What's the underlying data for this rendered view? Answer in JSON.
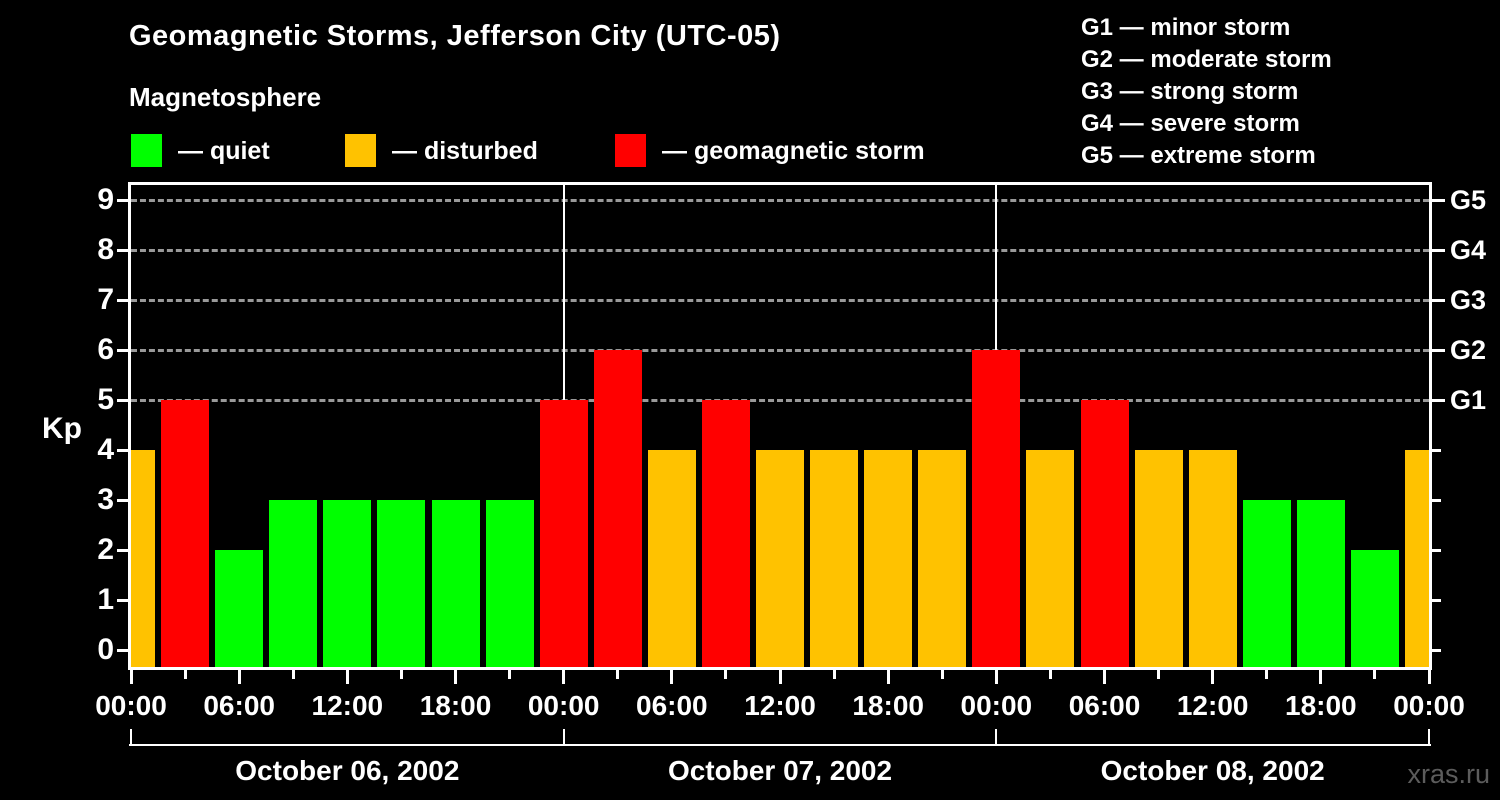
{
  "header": {
    "title": "Geomagnetic Storms, Jefferson City (UTC-05)",
    "subtitle": "Magnetosphere"
  },
  "legend": {
    "items": [
      {
        "name": "quiet",
        "label": "— quiet",
        "color": "#00ff00"
      },
      {
        "name": "disturbed",
        "label": "— disturbed",
        "color": "#ffc200"
      },
      {
        "name": "geomagnetic-storm",
        "label": "— geomagnetic storm",
        "color": "#ff0000"
      }
    ]
  },
  "g_scale_legend": {
    "lines": [
      "G1 — minor storm",
      "G2 — moderate storm",
      "G3 — strong storm",
      "G4 — severe storm",
      "G5 — extreme storm"
    ]
  },
  "watermark": "xras.ru",
  "colors": {
    "quiet": "#00ff00",
    "disturbed": "#ffc200",
    "storm": "#ff0000",
    "grid": "#999999",
    "axis": "#ffffff",
    "background": "#000000",
    "watermark": "#5c5c5c"
  },
  "chart_data": {
    "type": "bar",
    "title": "Geomagnetic Storms, Jefferson City (UTC-05)",
    "subtitle": "Magnetosphere",
    "ylabel": "Kp",
    "ylim": [
      0,
      9
    ],
    "y_ticks": [
      0,
      1,
      2,
      3,
      4,
      5,
      6,
      7,
      8,
      9
    ],
    "gridlines_at_kp": [
      5,
      6,
      7,
      8,
      9
    ],
    "right_axis_labels": [
      {
        "kp": 5,
        "label": "G1"
      },
      {
        "kp": 6,
        "label": "G2"
      },
      {
        "kp": 7,
        "label": "G3"
      },
      {
        "kp": 8,
        "label": "G4"
      },
      {
        "kp": 9,
        "label": "G5"
      }
    ],
    "x_time_labels": [
      "00:00",
      "06:00",
      "12:00",
      "18:00",
      "00:00",
      "06:00",
      "12:00",
      "18:00",
      "00:00",
      "06:00",
      "12:00",
      "18:00",
      "00:00"
    ],
    "day_labels": [
      "October 06, 2002",
      "October 07, 2002",
      "October 08, 2002"
    ],
    "day_boundary_slots": [
      0,
      8,
      16,
      24
    ],
    "hours_per_slot": 3,
    "points": [
      {
        "time": "Oct 06 00:00",
        "kp": 4,
        "status": "disturbed"
      },
      {
        "time": "Oct 06 03:00",
        "kp": 5,
        "status": "storm"
      },
      {
        "time": "Oct 06 06:00",
        "kp": 2,
        "status": "quiet"
      },
      {
        "time": "Oct 06 09:00",
        "kp": 3,
        "status": "quiet"
      },
      {
        "time": "Oct 06 12:00",
        "kp": 3,
        "status": "quiet"
      },
      {
        "time": "Oct 06 15:00",
        "kp": 3,
        "status": "quiet"
      },
      {
        "time": "Oct 06 18:00",
        "kp": 3,
        "status": "quiet"
      },
      {
        "time": "Oct 06 21:00",
        "kp": 3,
        "status": "quiet"
      },
      {
        "time": "Oct 07 00:00",
        "kp": 5,
        "status": "storm"
      },
      {
        "time": "Oct 07 03:00",
        "kp": 6,
        "status": "storm"
      },
      {
        "time": "Oct 07 06:00",
        "kp": 4,
        "status": "disturbed"
      },
      {
        "time": "Oct 07 09:00",
        "kp": 5,
        "status": "storm"
      },
      {
        "time": "Oct 07 12:00",
        "kp": 4,
        "status": "disturbed"
      },
      {
        "time": "Oct 07 15:00",
        "kp": 4,
        "status": "disturbed"
      },
      {
        "time": "Oct 07 18:00",
        "kp": 4,
        "status": "disturbed"
      },
      {
        "time": "Oct 07 21:00",
        "kp": 4,
        "status": "disturbed"
      },
      {
        "time": "Oct 08 00:00",
        "kp": 6,
        "status": "storm"
      },
      {
        "time": "Oct 08 03:00",
        "kp": 4,
        "status": "disturbed"
      },
      {
        "time": "Oct 08 06:00",
        "kp": 5,
        "status": "storm"
      },
      {
        "time": "Oct 08 09:00",
        "kp": 4,
        "status": "disturbed"
      },
      {
        "time": "Oct 08 12:00",
        "kp": 4,
        "status": "disturbed"
      },
      {
        "time": "Oct 08 15:00",
        "kp": 3,
        "status": "quiet"
      },
      {
        "time": "Oct 08 18:00",
        "kp": 3,
        "status": "quiet"
      },
      {
        "time": "Oct 08 21:00",
        "kp": 2,
        "status": "quiet"
      },
      {
        "time": "Oct 09 00:00",
        "kp": 4,
        "status": "disturbed"
      }
    ]
  }
}
